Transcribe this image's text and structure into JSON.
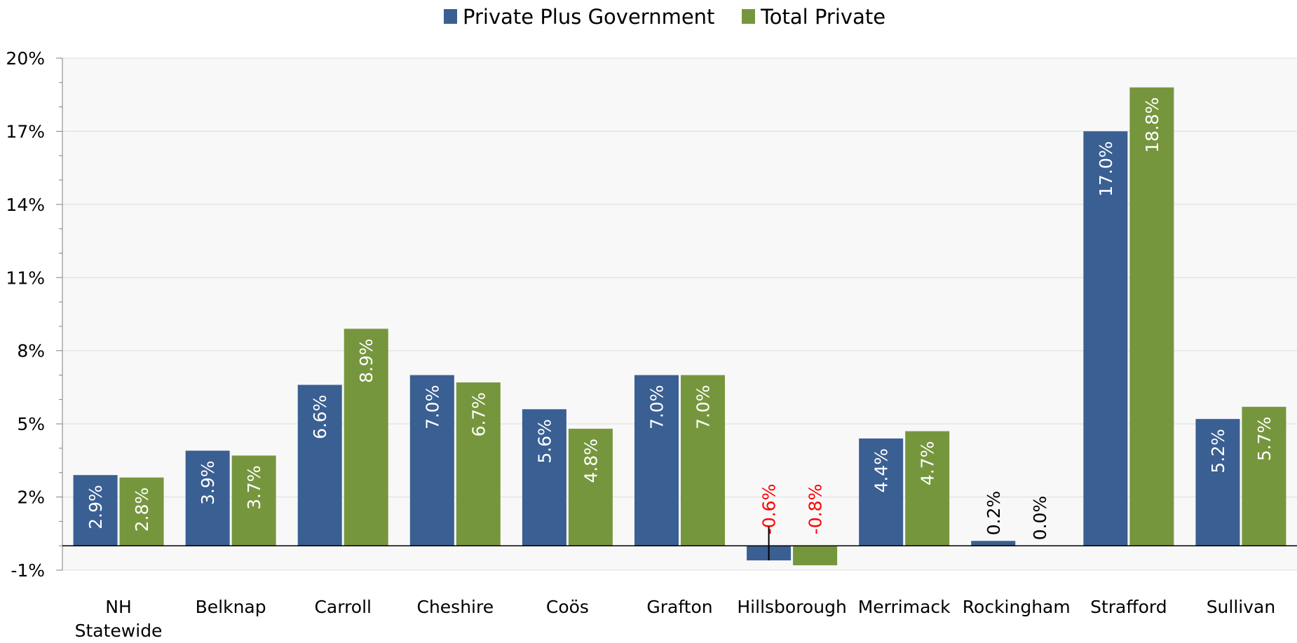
{
  "colors": {
    "private_plus_government": "#3a5f92",
    "total_private": "#76963d",
    "negative_label": "#ff0000",
    "plot_background": "#f8f8f8",
    "gridline": "#dcdcdc",
    "axis": "#808080"
  },
  "chart_data": {
    "type": "bar",
    "title": "",
    "xlabel": "",
    "ylabel": "",
    "ylim": [
      -1,
      20
    ],
    "yticks": [
      -1,
      2,
      5,
      8,
      11,
      14,
      17,
      20
    ],
    "ytick_labels": [
      "-1%",
      "2%",
      "5%",
      "8%",
      "11%",
      "14%",
      "17%",
      "20%"
    ],
    "grid": true,
    "legend_position": "top-center",
    "categories": [
      "NH Statewide",
      "Belknap",
      "Carroll",
      "Cheshire",
      "Coös",
      "Grafton",
      "Hillsborough",
      "Merrimack",
      "Rockingham",
      "Strafford",
      "Sullivan"
    ],
    "series": [
      {
        "name": "Private Plus Government",
        "values": [
          2.9,
          3.9,
          6.6,
          7.0,
          5.6,
          7.0,
          -0.6,
          4.4,
          0.2,
          17.0,
          5.2
        ],
        "labels": [
          "2.9%",
          "3.9%",
          "6.6%",
          "7.0%",
          "5.6%",
          "7.0%",
          "-0.6%",
          "4.4%",
          "0.2%",
          "17.0%",
          "5.2%"
        ]
      },
      {
        "name": "Total Private",
        "values": [
          2.8,
          3.7,
          8.9,
          6.7,
          4.8,
          7.0,
          -0.8,
          4.7,
          0.0,
          18.8,
          5.7
        ],
        "labels": [
          "2.8%",
          "3.7%",
          "8.9%",
          "6.7%",
          "4.8%",
          "7.0%",
          "-0.8%",
          "4.7%",
          "0.0%",
          "18.8%",
          "5.7%"
        ]
      }
    ]
  }
}
